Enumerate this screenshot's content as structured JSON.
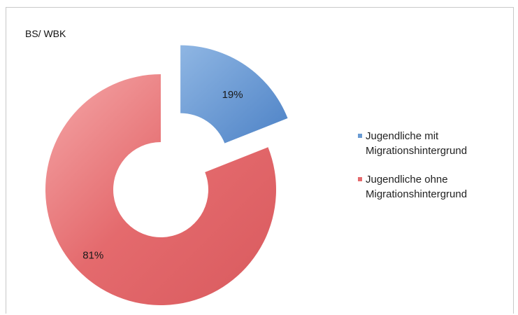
{
  "chart_data": {
    "type": "pie",
    "variant": "donut",
    "title": "BS/ WBK",
    "categories": [
      "Jugendliche mit Migrationshintergrund",
      "Jugendliche ohne Migrationshintergrund"
    ],
    "values": [
      19,
      81
    ],
    "data_labels": [
      "19%",
      "81%"
    ],
    "colors": [
      "#6a9bd3",
      "#e46a6d"
    ],
    "exploded_slice": 0,
    "legend_position": "right"
  }
}
